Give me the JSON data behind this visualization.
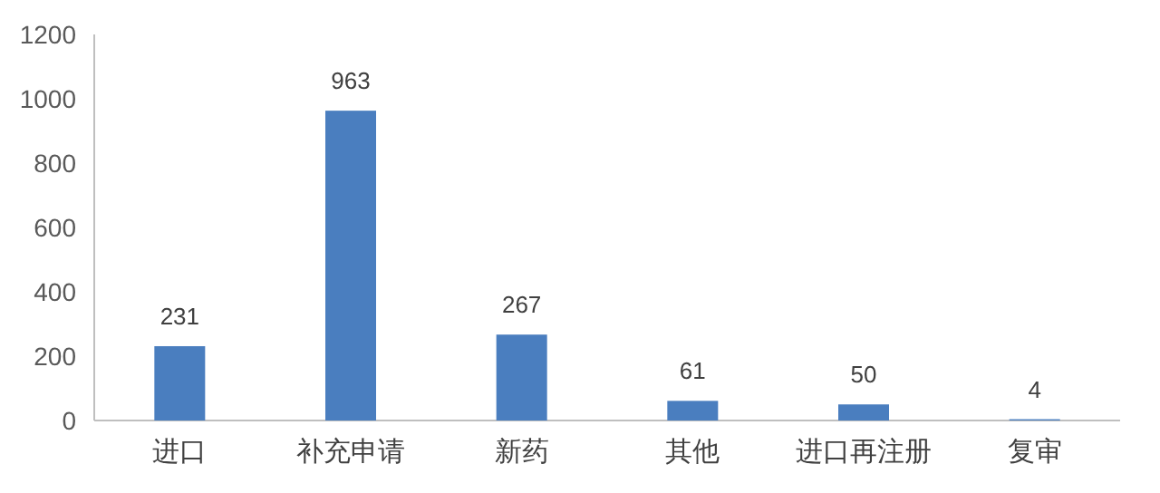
{
  "chart_data": {
    "type": "bar",
    "categories": [
      "进口",
      "补充申请",
      "新药",
      "其他",
      "进口再注册",
      "复审"
    ],
    "values": [
      231,
      963,
      267,
      61,
      50,
      4
    ],
    "color": "#4a7ebf",
    "ylim": [
      0,
      1200
    ],
    "yticks": [
      0,
      200,
      400,
      600,
      800,
      1000,
      1200
    ],
    "grid": false,
    "data_labels": true
  }
}
